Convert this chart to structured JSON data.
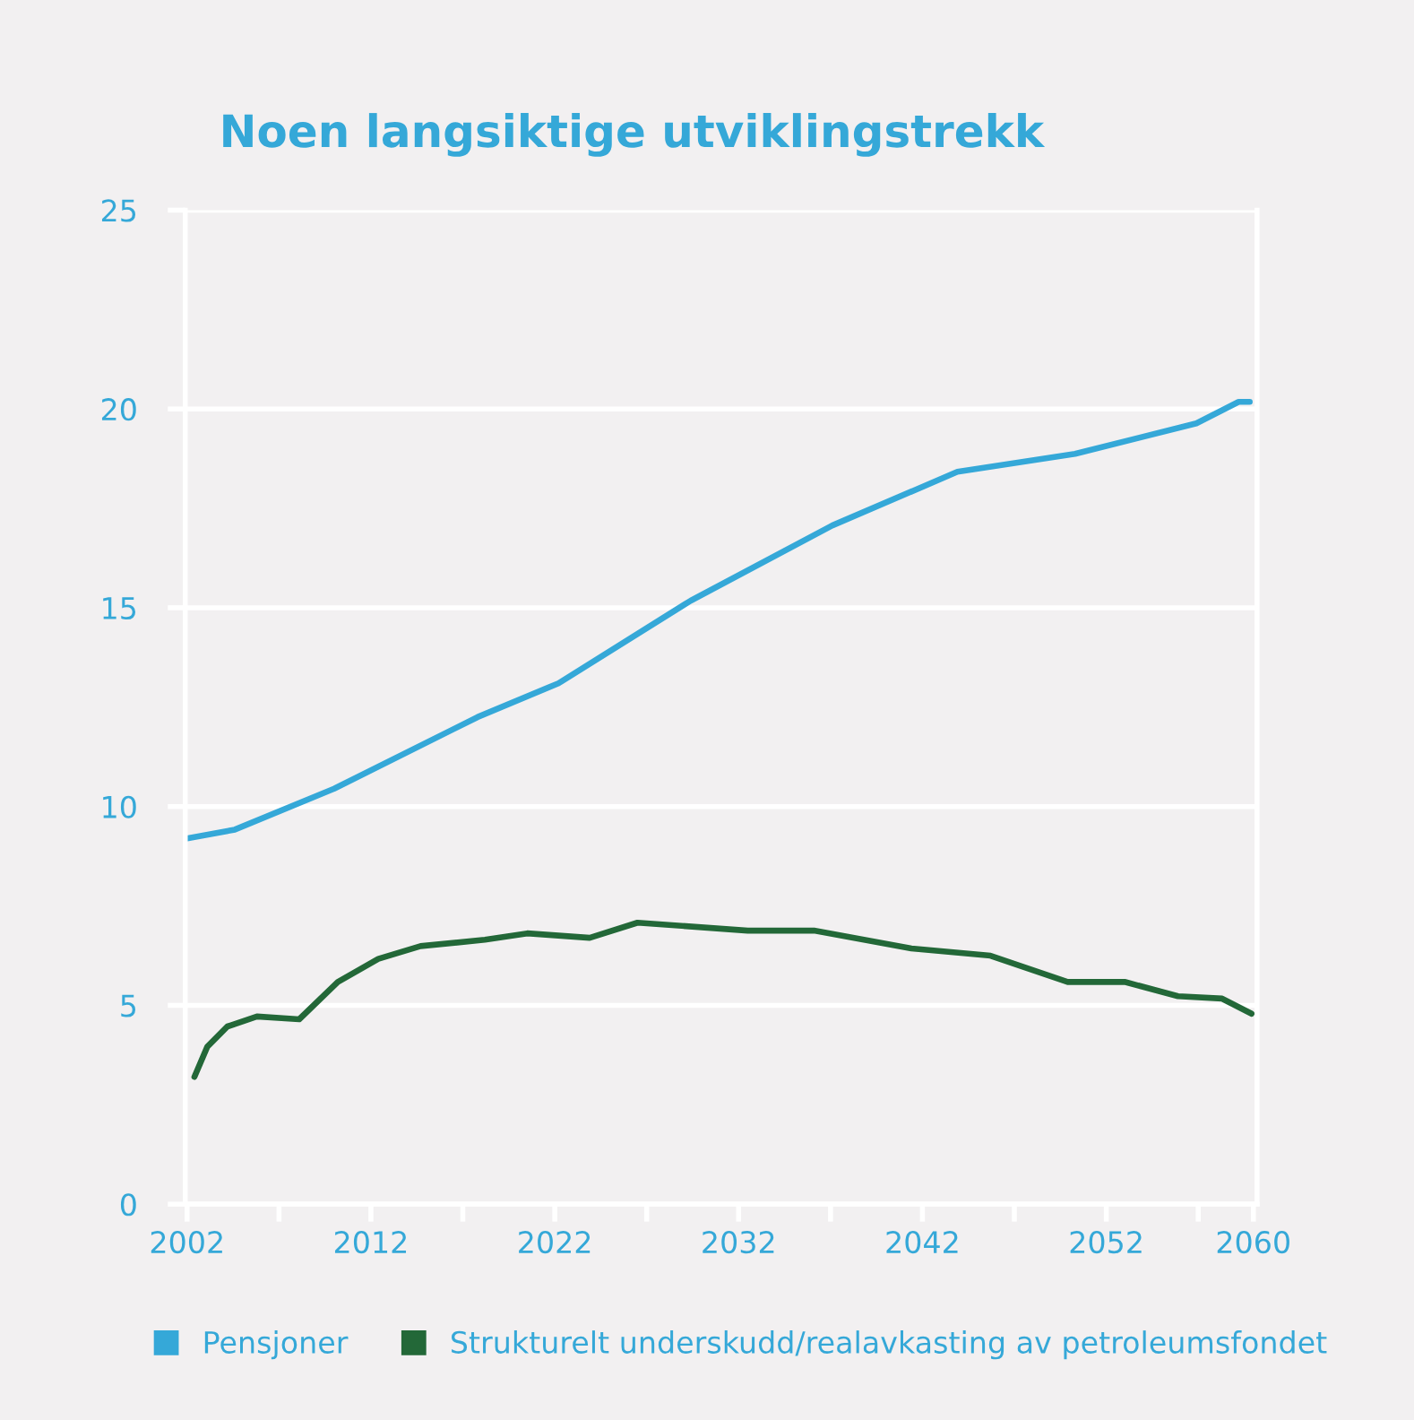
{
  "chart_data": {
    "type": "line",
    "title": "Noen langsiktige utviklingstrekk",
    "xlim": [
      2001.9,
      2060.2
    ],
    "xticks": [
      2002,
      {
        "value": 2007,
        "label": null
      },
      2012,
      {
        "value": 2017,
        "label": null
      },
      2022,
      {
        "value": 2027,
        "label": null
      },
      2032,
      {
        "value": 2037,
        "label": null
      },
      2042,
      {
        "value": 2047,
        "label": null
      },
      2052,
      {
        "value": 2057,
        "label": null
      },
      2060
    ],
    "ylim": [
      0,
      25
    ],
    "yticks": [
      0,
      5,
      10,
      15,
      20,
      25
    ],
    "grid": "y",
    "legend": "bottom",
    "line_style": "solid",
    "marker": "none",
    "series": [
      {
        "name": "Pensjoner",
        "color": "#35a8d8",
        "x": [
          2002,
          2004.6,
          2010,
          2017.8,
          2022.2,
          2029.4,
          2037.1,
          2043.9,
          2050.3,
          2056.9,
          2059.2,
          2059.8
        ],
        "values": [
          9.2,
          9.42,
          10.45,
          12.25,
          13.1,
          15.18,
          17.07,
          18.42,
          18.87,
          19.64,
          20.18,
          20.18
        ]
      },
      {
        "name": "Strukturelt underskudd/realavkasting av petroleumsfondet",
        "color": "#236838",
        "x": [
          2002.4,
          2003.1,
          2004.2,
          2005.8,
          2008.1,
          2010.2,
          2012.4,
          2014.7,
          2018.2,
          2020.5,
          2023.9,
          2026.5,
          2032.5,
          2036.1,
          2041.4,
          2045.7,
          2049.9,
          2053,
          2055.9,
          2058.3,
          2059.9
        ],
        "values": [
          3.2,
          3.96,
          4.47,
          4.72,
          4.65,
          5.59,
          6.17,
          6.49,
          6.65,
          6.81,
          6.7,
          7.08,
          6.88,
          6.88,
          6.43,
          6.25,
          5.59,
          5.59,
          5.23,
          5.17,
          4.79
        ]
      }
    ]
  }
}
